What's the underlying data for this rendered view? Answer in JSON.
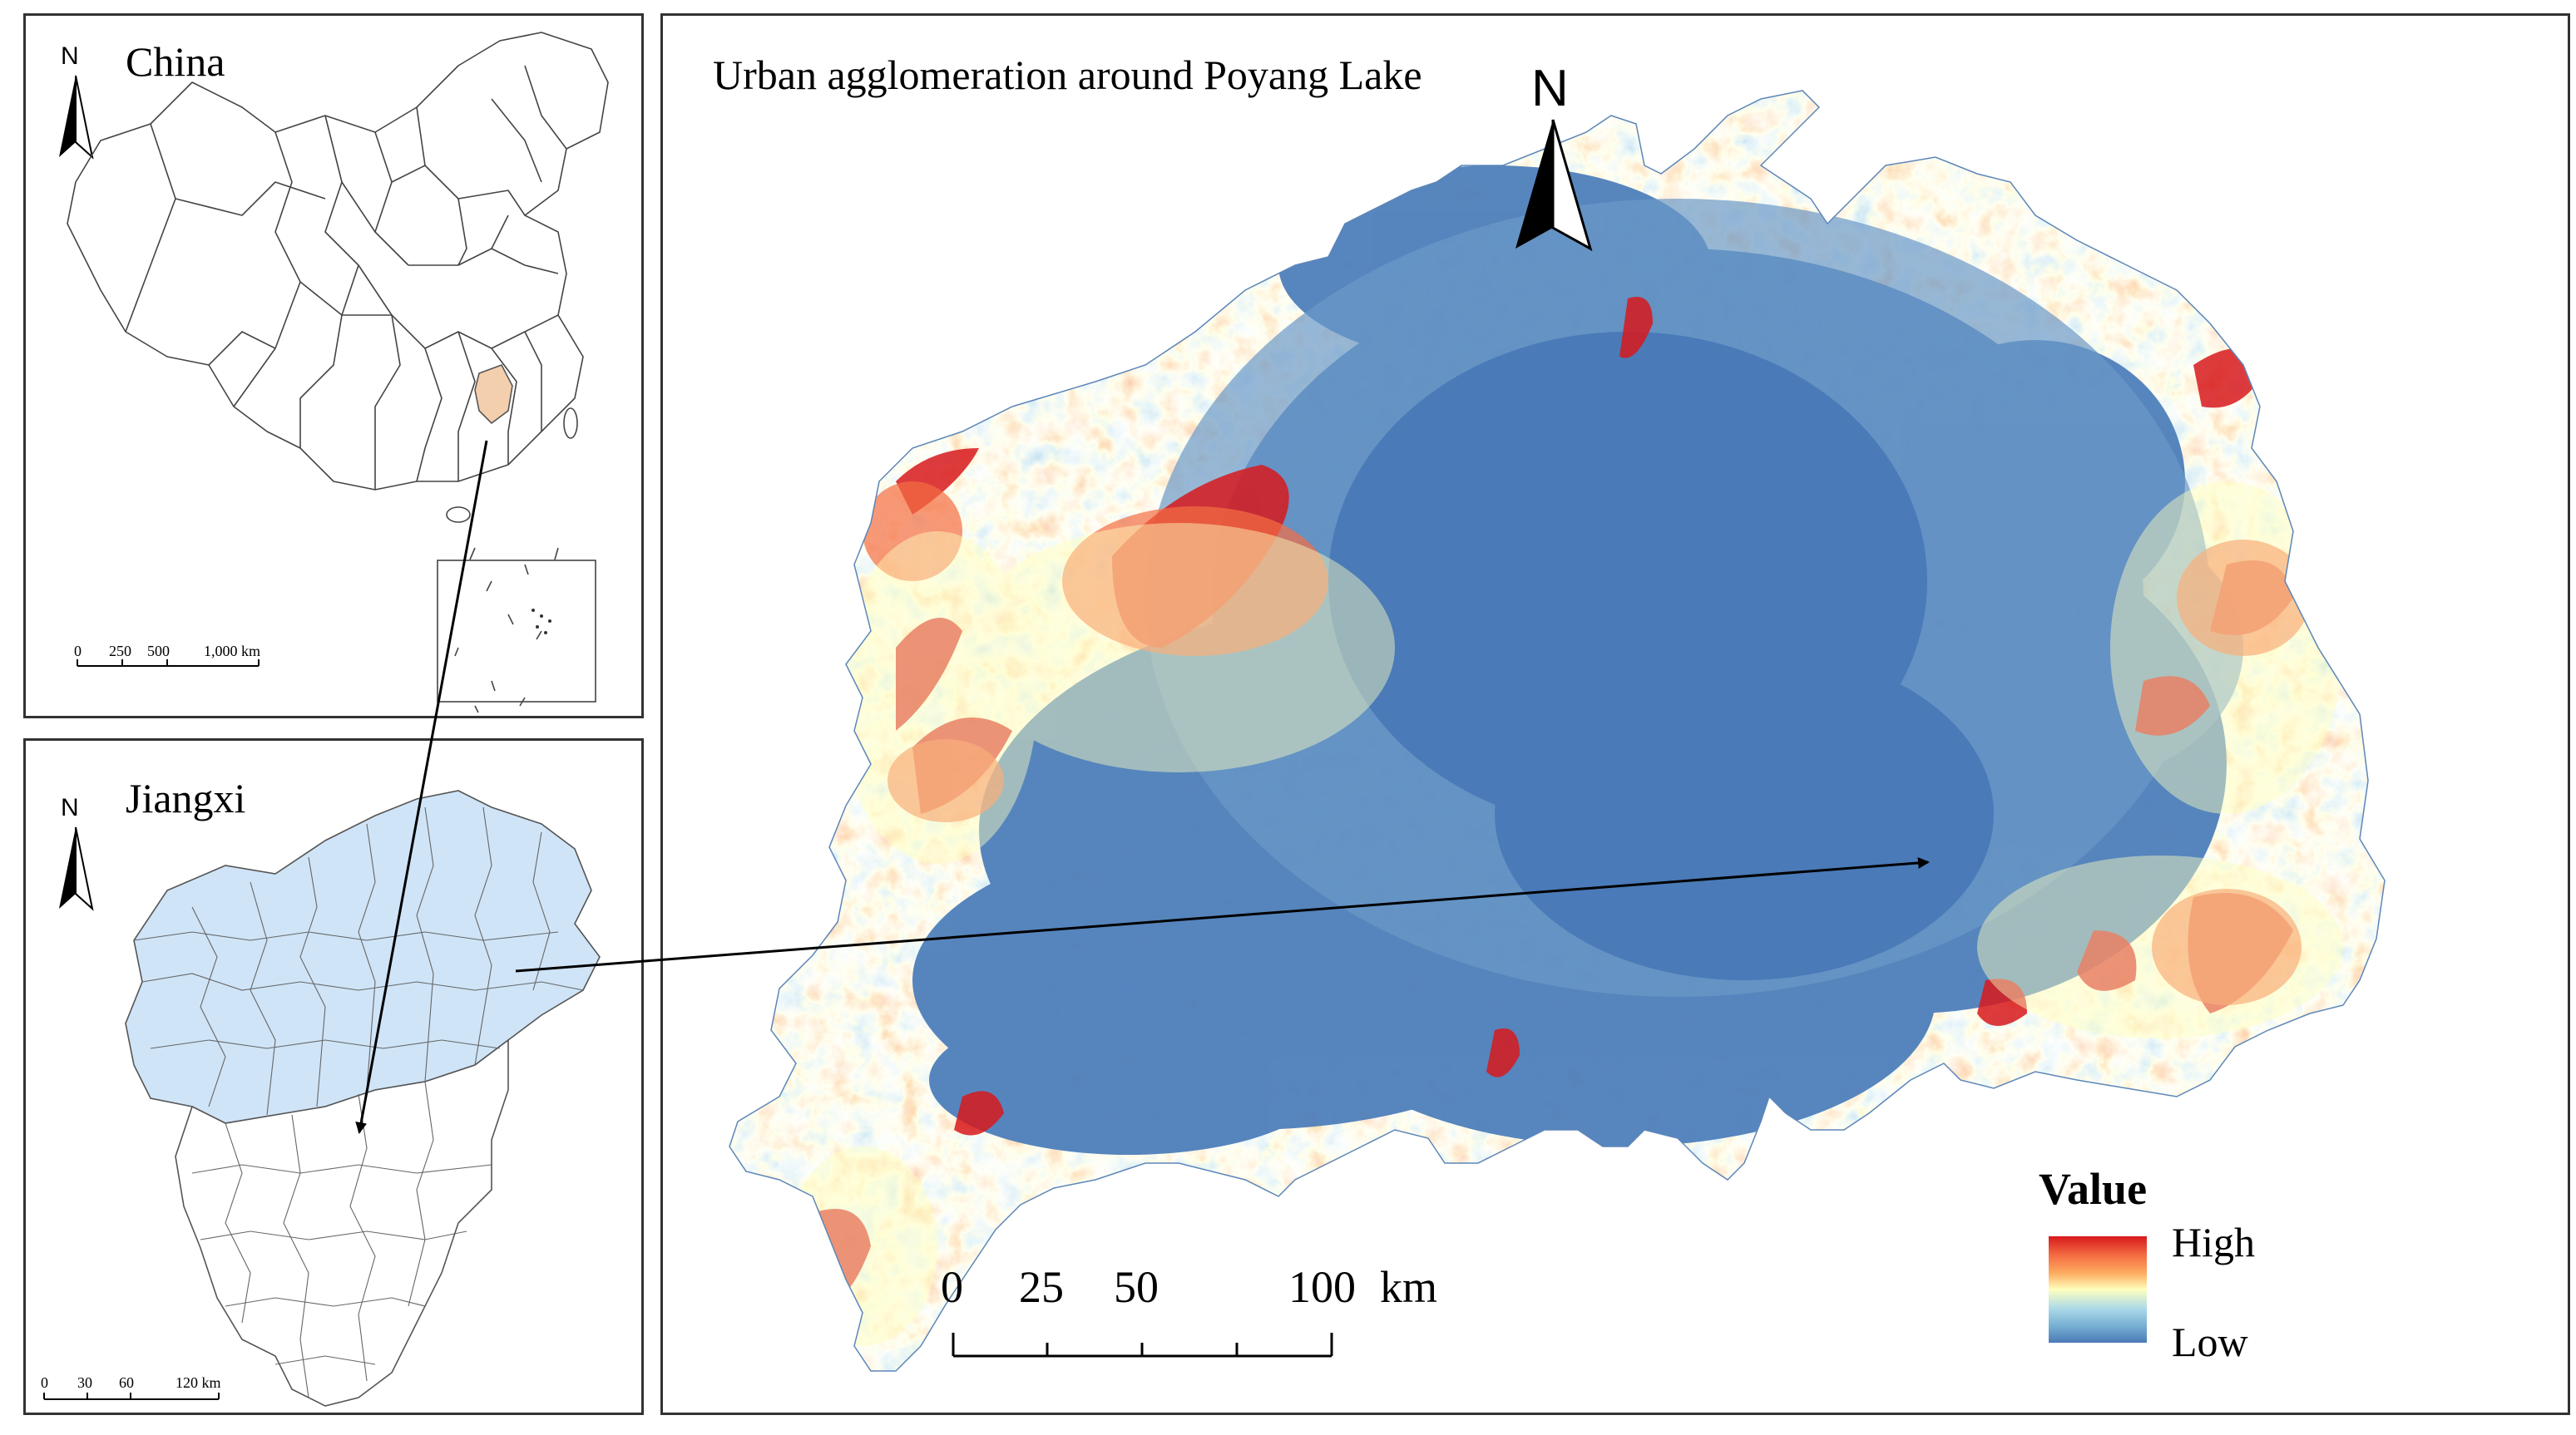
{
  "figure": {
    "background": "#ffffff",
    "panel_border": "#333333"
  },
  "china_panel": {
    "title": "China",
    "north_label": "N",
    "highlight_color": "#f3cfae",
    "scale_labels": [
      "0",
      "250",
      "500",
      "1,000 km"
    ]
  },
  "jiangxi_panel": {
    "title": "Jiangxi",
    "north_label": "N",
    "study_area_fill": "#cfe4f7",
    "scale_labels": [
      "0",
      "30",
      "60",
      "120 km"
    ]
  },
  "main_panel": {
    "title": "Urban agglomeration around Poyang Lake",
    "north_label": "N",
    "scale_labels": [
      "0",
      "25",
      "50",
      "100",
      "km"
    ],
    "legend": {
      "title": "Value",
      "high_label": "High",
      "low_label": "Low",
      "colors": [
        "#d7191c",
        "#f46d43",
        "#fdae61",
        "#ffffbf",
        "#abd9e9",
        "#74add1",
        "#4a7ab7"
      ]
    }
  },
  "connector_arrows": [
    {
      "from": "china-highlight",
      "to": "jiangxi-map"
    },
    {
      "from": "jiangxi-study-area",
      "to": "main-map"
    }
  ]
}
